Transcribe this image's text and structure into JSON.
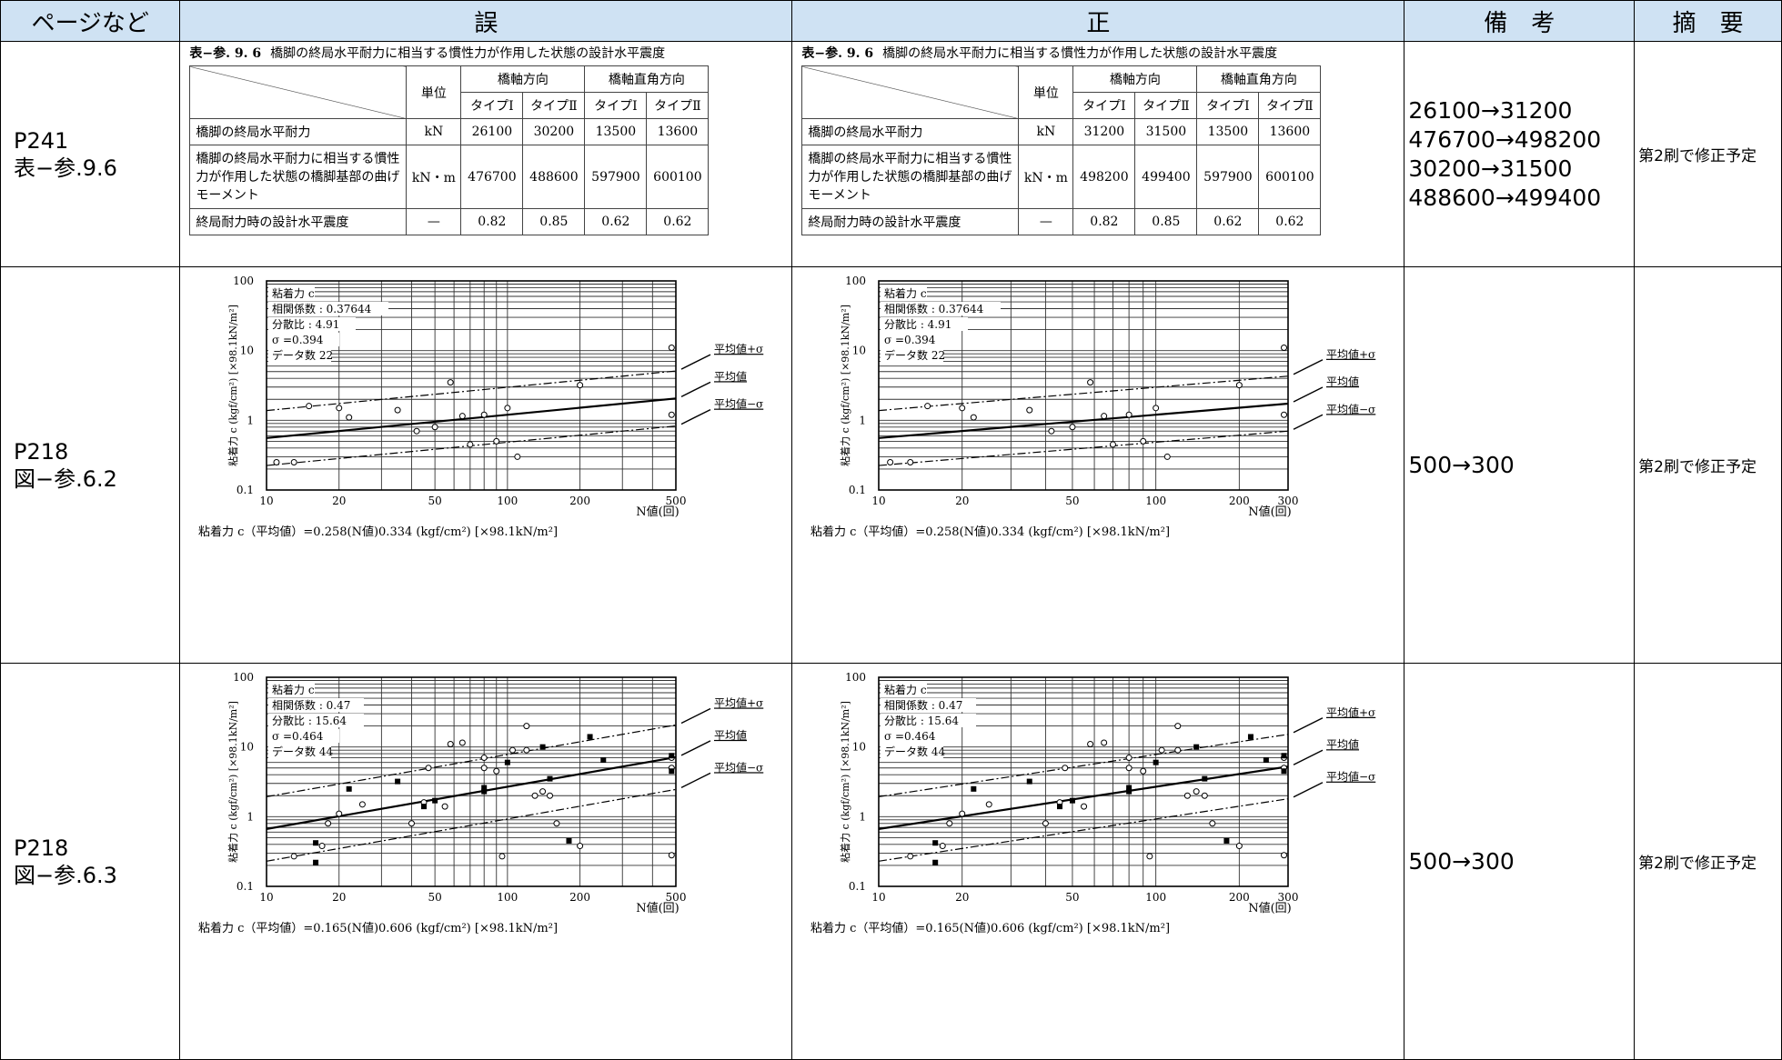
{
  "headers": {
    "page": "ページなど",
    "wrong": "誤",
    "correct": "正",
    "remarks": "備　考",
    "summary": "摘　要"
  },
  "rows": [
    {
      "page": [
        "P241",
        "表−参.9.6"
      ],
      "remarks": [
        "26100→31200",
        "476700→498200",
        "30200→31500",
        "488600→499400"
      ],
      "summary": "第2刷で修正予定",
      "wrong_table": {
        "caption_no": "表−参. 9. 6",
        "caption": "橋脚の終局水平耐力に相当する慣性力が作用した状態の設計水平震度",
        "unit_header": "単位",
        "dir1": "橋軸方向",
        "dir2": "橋軸直角方向",
        "types": [
          "タイプⅠ",
          "タイプⅡ",
          "タイプⅠ",
          "タイプⅡ"
        ],
        "rows": [
          {
            "label": "橋脚の終局水平耐力",
            "unit": "kN",
            "v": [
              "26100",
              "30200",
              "13500",
              "13600"
            ]
          },
          {
            "label": "橋脚の終局水平耐力に相当する慣性力が作用した状態の橋脚基部の曲げモーメント",
            "unit": "kN・m",
            "v": [
              "476700",
              "488600",
              "597900",
              "600100"
            ]
          },
          {
            "label": "終局耐力時の設計水平震度",
            "unit": "—",
            "v": [
              "0.82",
              "0.85",
              "0.62",
              "0.62"
            ]
          }
        ]
      },
      "correct_table": {
        "caption_no": "表−参. 9. 6",
        "caption": "橋脚の終局水平耐力に相当する慣性力が作用した状態の設計水平震度",
        "unit_header": "単位",
        "dir1": "橋軸方向",
        "dir2": "橋軸直角方向",
        "types": [
          "タイプⅠ",
          "タイプⅡ",
          "タイプⅠ",
          "タイプⅡ"
        ],
        "rows": [
          {
            "label": "橋脚の終局水平耐力",
            "unit": "kN",
            "v": [
              "31200",
              "31500",
              "13500",
              "13600"
            ]
          },
          {
            "label": "橋脚の終局水平耐力に相当する慣性力が作用した状態の橋脚基部の曲げモーメント",
            "unit": "kN・m",
            "v": [
              "498200",
              "499400",
              "597900",
              "600100"
            ]
          },
          {
            "label": "終局耐力時の設計水平震度",
            "unit": "—",
            "v": [
              "0.82",
              "0.85",
              "0.62",
              "0.62"
            ]
          }
        ]
      }
    },
    {
      "page": [
        "P218",
        "図−参.6.2"
      ],
      "remarks": [
        "500→300"
      ],
      "summary": "第2刷で修正予定"
    },
    {
      "page": [
        "P218",
        "図−参.6.3"
      ],
      "remarks": [
        "500→300"
      ],
      "summary": "第2刷で修正予定"
    }
  ],
  "chart_data": [
    {
      "type": "scatter",
      "id": "fig62-wrong",
      "log_x": true,
      "log_y": true,
      "xlim": [
        10,
        500
      ],
      "ylim": [
        0.1,
        100
      ],
      "ylabel": "粘着力 c (kgf/cm²) [×98.1kN/m²]",
      "xlabel": "N値(回)",
      "xticks": [
        "10",
        "20",
        "50",
        "100",
        "200",
        "500"
      ],
      "yticks": [
        "0.1",
        "1",
        "10",
        "100"
      ],
      "stats": [
        "粘着力 c",
        "相関係数 : 0.37644",
        "分散比 : 4.91",
        "σ =0.394",
        "データ数 22"
      ],
      "line_labels": [
        "平均値+σ",
        "平均値",
        "平均値−σ"
      ],
      "formula": "粘着力 c（平均値）=0.258(N値)0.334 (kgf/cm²) [×98.1kN/m²]",
      "coef": 0.258,
      "exp": 0.334,
      "sigma_factor": 2.48,
      "points": [
        [
          11,
          0.25
        ],
        [
          13,
          0.25
        ],
        [
          15,
          1.6
        ],
        [
          20,
          1.5
        ],
        [
          22,
          1.1
        ],
        [
          35,
          1.4
        ],
        [
          42,
          0.7
        ],
        [
          50,
          0.8
        ],
        [
          58,
          3.5
        ],
        [
          65,
          1.15
        ],
        [
          70,
          0.45
        ],
        [
          80,
          1.2
        ],
        [
          90,
          0.5
        ],
        [
          100,
          1.5
        ],
        [
          110,
          0.3
        ],
        [
          200,
          3.2
        ],
        [
          480,
          11
        ],
        [
          480,
          1.2
        ]
      ],
      "filled": []
    },
    {
      "type": "scatter",
      "id": "fig62-correct",
      "log_x": true,
      "log_y": true,
      "xlim": [
        10,
        300
      ],
      "ylim": [
        0.1,
        100
      ],
      "ylabel": "粘着力 c (kgf/cm²) [×98.1kN/m²]",
      "xlabel": "N値(回)",
      "xticks": [
        "10",
        "20",
        "50",
        "100",
        "200",
        "300"
      ],
      "yticks": [
        "0.1",
        "1",
        "10",
        "100"
      ],
      "stats": [
        "粘着力 c",
        "相関係数 : 0.37644",
        "分散比 : 4.91",
        "σ =0.394",
        "データ数 22"
      ],
      "line_labels": [
        "平均値+σ",
        "平均値",
        "平均値−σ"
      ],
      "formula": "粘着力 c（平均値）=0.258(N値)0.334 (kgf/cm²) [×98.1kN/m²]",
      "coef": 0.258,
      "exp": 0.334,
      "sigma_factor": 2.48,
      "points": [
        [
          11,
          0.25
        ],
        [
          13,
          0.25
        ],
        [
          15,
          1.6
        ],
        [
          20,
          1.5
        ],
        [
          22,
          1.1
        ],
        [
          35,
          1.4
        ],
        [
          42,
          0.7
        ],
        [
          50,
          0.8
        ],
        [
          58,
          3.5
        ],
        [
          65,
          1.15
        ],
        [
          70,
          0.45
        ],
        [
          80,
          1.2
        ],
        [
          90,
          0.5
        ],
        [
          100,
          1.5
        ],
        [
          110,
          0.3
        ],
        [
          200,
          3.2
        ],
        [
          290,
          11
        ],
        [
          290,
          1.2
        ]
      ],
      "filled": []
    },
    {
      "type": "scatter",
      "id": "fig63-wrong",
      "log_x": true,
      "log_y": true,
      "xlim": [
        10,
        500
      ],
      "ylim": [
        0.1,
        100
      ],
      "ylabel": "粘着力 c (kgf/cm²) [×98.1kN/m²]",
      "xlabel": "N値(回)",
      "xticks": [
        "10",
        "20",
        "50",
        "100",
        "200",
        "500"
      ],
      "yticks": [
        "0.1",
        "1",
        "10",
        "100"
      ],
      "stats": [
        "粘着力 c",
        "相関係数 : 0.47",
        "分散比 : 15.64",
        "σ =0.464",
        "データ数 44"
      ],
      "line_labels": [
        "平均値+σ",
        "平均値",
        "平均値−σ"
      ],
      "formula": "粘着力 c（平均値）=0.165(N値)0.606 (kgf/cm²) [×98.1kN/m²]",
      "coef": 0.165,
      "exp": 0.606,
      "sigma_factor": 2.9,
      "points": [
        [
          13,
          0.27
        ],
        [
          17,
          0.38
        ],
        [
          18,
          0.8
        ],
        [
          20,
          1.1
        ],
        [
          25,
          1.5
        ],
        [
          40,
          0.8
        ],
        [
          45,
          1.6
        ],
        [
          47,
          5
        ],
        [
          55,
          1.4
        ],
        [
          58,
          11
        ],
        [
          65,
          11.5
        ],
        [
          80,
          7
        ],
        [
          80,
          5
        ],
        [
          95,
          0.27
        ],
        [
          90,
          4.5
        ],
        [
          105,
          9
        ],
        [
          120,
          9
        ],
        [
          120,
          20
        ],
        [
          130,
          2
        ],
        [
          140,
          2.3
        ],
        [
          150,
          2
        ],
        [
          160,
          0.8
        ],
        [
          200,
          0.38
        ],
        [
          480,
          0.28
        ],
        [
          480,
          7
        ],
        [
          480,
          5
        ]
      ],
      "filled": [
        [
          16,
          0.22
        ],
        [
          16,
          0.42
        ],
        [
          22,
          2.5
        ],
        [
          35,
          3.2
        ],
        [
          45,
          1.4
        ],
        [
          50,
          1.7
        ],
        [
          80,
          2.3
        ],
        [
          80,
          2.6
        ],
        [
          100,
          6
        ],
        [
          140,
          10
        ],
        [
          150,
          3.5
        ],
        [
          180,
          0.45
        ],
        [
          220,
          14
        ],
        [
          250,
          6.5
        ],
        [
          480,
          4.5
        ],
        [
          480,
          7.5
        ]
      ]
    },
    {
      "type": "scatter",
      "id": "fig63-correct",
      "log_x": true,
      "log_y": true,
      "xlim": [
        10,
        300
      ],
      "ylim": [
        0.1,
        100
      ],
      "ylabel": "粘着力 c (kgf/cm²) [×98.1kN/m²]",
      "xlabel": "N値(回)",
      "xticks": [
        "10",
        "20",
        "50",
        "100",
        "200",
        "300"
      ],
      "yticks": [
        "0.1",
        "1",
        "10",
        "100"
      ],
      "stats": [
        "粘着力 c",
        "相関係数 : 0.47",
        "分散比 : 15.64",
        "σ =0.464",
        "データ数 44"
      ],
      "line_labels": [
        "平均値+σ",
        "平均値",
        "平均値−σ"
      ],
      "formula": "粘着力 c（平均値）=0.165(N値)0.606 (kgf/cm²) [×98.1kN/m²]",
      "coef": 0.165,
      "exp": 0.606,
      "sigma_factor": 2.9,
      "points": [
        [
          13,
          0.27
        ],
        [
          17,
          0.38
        ],
        [
          18,
          0.8
        ],
        [
          20,
          1.1
        ],
        [
          25,
          1.5
        ],
        [
          40,
          0.8
        ],
        [
          45,
          1.6
        ],
        [
          47,
          5
        ],
        [
          55,
          1.4
        ],
        [
          58,
          11
        ],
        [
          65,
          11.5
        ],
        [
          80,
          7
        ],
        [
          80,
          5
        ],
        [
          95,
          0.27
        ],
        [
          90,
          4.5
        ],
        [
          105,
          9
        ],
        [
          120,
          9
        ],
        [
          120,
          20
        ],
        [
          130,
          2
        ],
        [
          140,
          2.3
        ],
        [
          150,
          2
        ],
        [
          160,
          0.8
        ],
        [
          200,
          0.38
        ],
        [
          290,
          0.28
        ],
        [
          290,
          7
        ],
        [
          290,
          5
        ]
      ],
      "filled": [
        [
          16,
          0.22
        ],
        [
          16,
          0.42
        ],
        [
          22,
          2.5
        ],
        [
          35,
          3.2
        ],
        [
          45,
          1.4
        ],
        [
          50,
          1.7
        ],
        [
          80,
          2.3
        ],
        [
          80,
          2.6
        ],
        [
          100,
          6
        ],
        [
          140,
          10
        ],
        [
          150,
          3.5
        ],
        [
          180,
          0.45
        ],
        [
          220,
          14
        ],
        [
          250,
          6.5
        ],
        [
          290,
          4.5
        ],
        [
          290,
          7.5
        ]
      ]
    }
  ]
}
